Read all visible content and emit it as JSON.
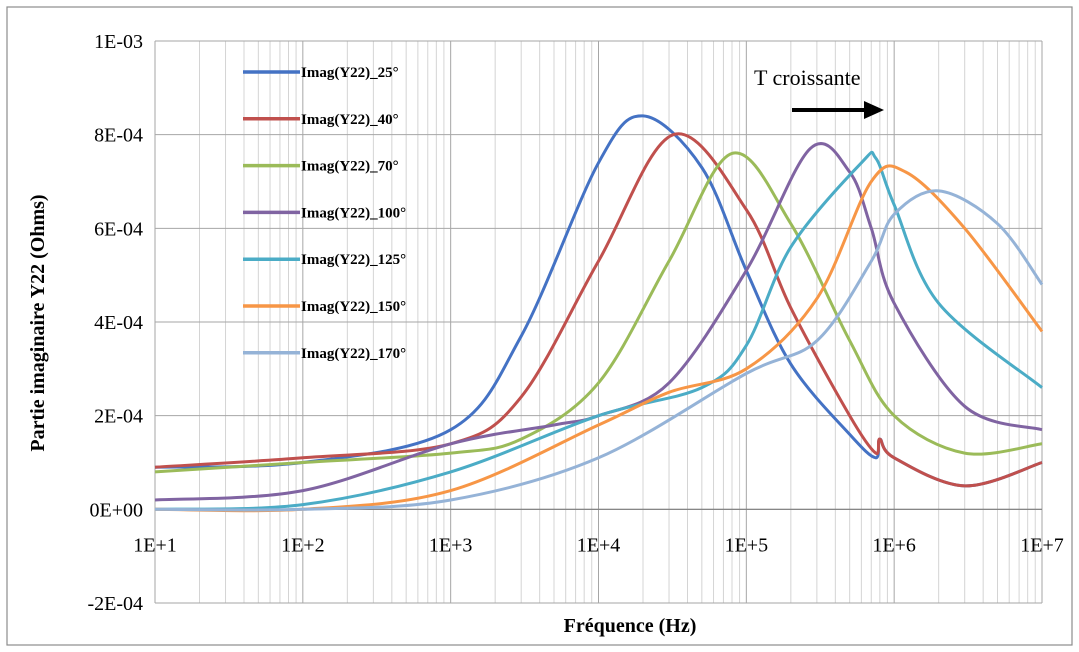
{
  "chart_data": {
    "type": "line",
    "xlabel": "Fréquence (Hz)",
    "ylabel": "Partie imaginaire Y22 (Ohms)",
    "xscale": "log",
    "xlim": [
      10,
      10000000
    ],
    "ylim": [
      -0.0002,
      0.001
    ],
    "xticks": [
      {
        "value": 10,
        "label": "1E+1"
      },
      {
        "value": 100,
        "label": "1E+2"
      },
      {
        "value": 1000,
        "label": "1E+3"
      },
      {
        "value": 10000,
        "label": "1E+4"
      },
      {
        "value": 100000,
        "label": "1E+5"
      },
      {
        "value": 1000000,
        "label": "1E+6"
      },
      {
        "value": 10000000,
        "label": "1E+7"
      }
    ],
    "yticks": [
      {
        "value": -0.0002,
        "label": "-2E-04"
      },
      {
        "value": 0,
        "label": "0E+00"
      },
      {
        "value": 0.0002,
        "label": "2E-04"
      },
      {
        "value": 0.0004,
        "label": "4E-04"
      },
      {
        "value": 0.0006,
        "label": "6E-04"
      },
      {
        "value": 0.0008,
        "label": "8E-04"
      },
      {
        "value": 0.001,
        "label": "1E-03"
      }
    ],
    "grid": true,
    "legend_position": "top-left",
    "annotation": {
      "text": "T croissante",
      "arrow": "right"
    },
    "series": [
      {
        "name": "Imag(Y22)_25°",
        "color": "#4472C4",
        "x": [
          10,
          100,
          1000,
          3000,
          10000,
          20000,
          50000,
          100000,
          200000,
          500000,
          750000,
          800000,
          1000000,
          3000000,
          10000000
        ],
        "y": [
          9e-05,
          0.0001,
          0.00017,
          0.00037,
          0.00074,
          0.00084,
          0.00073,
          0.00051,
          0.00031,
          0.00016,
          0.00011,
          0.00015,
          0.00011,
          5e-05,
          0.0001
        ]
      },
      {
        "name": "Imag(Y22)_40°",
        "color": "#C0504D",
        "x": [
          10,
          100,
          1000,
          3000,
          10000,
          32000,
          100000,
          200000,
          500000,
          750000,
          800000,
          1000000,
          3000000,
          10000000
        ],
        "y": [
          9e-05,
          0.00011,
          0.00014,
          0.00024,
          0.00053,
          0.0008,
          0.00064,
          0.00043,
          0.0002,
          0.00012,
          0.00015,
          0.00011,
          5e-05,
          0.0001
        ]
      },
      {
        "name": "Imag(Y22)_70°",
        "color": "#9BBB59",
        "x": [
          10,
          100,
          1000,
          3000,
          10000,
          30000,
          80000,
          200000,
          500000,
          1000000,
          3000000,
          10000000
        ],
        "y": [
          8e-05,
          0.0001,
          0.00012,
          0.00015,
          0.00027,
          0.00053,
          0.00076,
          0.00061,
          0.00036,
          0.0002,
          0.00012,
          0.00014
        ]
      },
      {
        "name": "Imag(Y22)_100°",
        "color": "#8064A2",
        "x": [
          10,
          100,
          1000,
          5000,
          10000,
          30000,
          100000,
          270000,
          500000,
          700000,
          1000000,
          3000000,
          10000000
        ],
        "y": [
          2e-05,
          4e-05,
          0.00014,
          0.00018,
          0.0002,
          0.00027,
          0.00051,
          0.00077,
          0.00072,
          0.0006,
          0.00044,
          0.00022,
          0.00017
        ]
      },
      {
        "name": "Imag(Y22)_125°",
        "color": "#4BACC6",
        "x": [
          10,
          100,
          1000,
          10000,
          50000,
          100000,
          200000,
          600000,
          750000,
          1000000,
          2000000,
          10000000
        ],
        "y": [
          0.0,
          1e-05,
          8e-05,
          0.0002,
          0.00026,
          0.00035,
          0.00056,
          0.00074,
          0.00075,
          0.00065,
          0.00044,
          0.00026
        ]
      },
      {
        "name": "Imag(Y22)_150°",
        "color": "#F79646",
        "x": [
          10,
          100,
          1000,
          10000,
          30000,
          100000,
          300000,
          700000,
          1200000,
          3000000,
          10000000
        ],
        "y": [
          0.0,
          0.0,
          4e-05,
          0.00018,
          0.00025,
          0.0003,
          0.00045,
          0.0007,
          0.00072,
          0.0006,
          0.00038
        ]
      },
      {
        "name": "Imag(Y22)_170°",
        "color": "#95B3D7",
        "x": [
          10,
          100,
          1000,
          10000,
          100000,
          300000,
          700000,
          1000000,
          2000000,
          5000000,
          10000000
        ],
        "y": [
          0.0,
          0.0,
          2e-05,
          0.00011,
          0.00029,
          0.00036,
          0.00053,
          0.00063,
          0.00068,
          0.00061,
          0.00048
        ]
      }
    ]
  }
}
